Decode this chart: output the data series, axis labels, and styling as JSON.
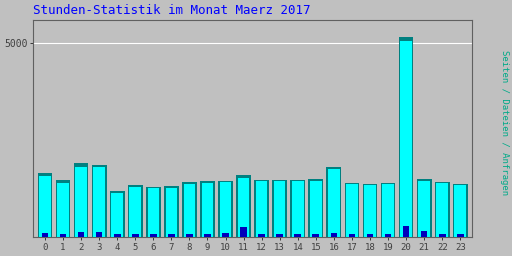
{
  "title": "Stunden-Statistik im Monat Maerz 2017",
  "ylabel": "Seiten / Dateien / Anfragen",
  "background_color": "#c0c0c0",
  "hours": [
    0,
    1,
    2,
    3,
    4,
    5,
    6,
    7,
    8,
    9,
    10,
    11,
    12,
    13,
    14,
    15,
    16,
    17,
    18,
    19,
    20,
    21,
    22,
    23
  ],
  "seiten": [
    1650,
    1480,
    1900,
    1850,
    1200,
    1340,
    1300,
    1310,
    1420,
    1450,
    1450,
    1600,
    1480,
    1480,
    1470,
    1490,
    1820,
    1410,
    1370,
    1400,
    5150,
    1490,
    1420,
    1380
  ],
  "dateien": [
    1580,
    1400,
    1820,
    1800,
    1130,
    1290,
    1260,
    1270,
    1380,
    1400,
    1420,
    1530,
    1450,
    1450,
    1440,
    1460,
    1770,
    1370,
    1340,
    1370,
    5050,
    1440,
    1390,
    1340
  ],
  "anfragen": [
    120,
    95,
    130,
    125,
    75,
    85,
    85,
    85,
    90,
    95,
    115,
    270,
    90,
    90,
    90,
    90,
    120,
    90,
    85,
    85,
    290,
    170,
    90,
    85
  ],
  "color_seiten": "#008080",
  "color_dateien": "#00ffff",
  "color_anfragen": "#0000bb",
  "title_color": "#0000ff",
  "title_fontsize": 9,
  "ylim": [
    0,
    5600
  ],
  "ytick_val": 5000,
  "ylabel_color": "#00aa88"
}
